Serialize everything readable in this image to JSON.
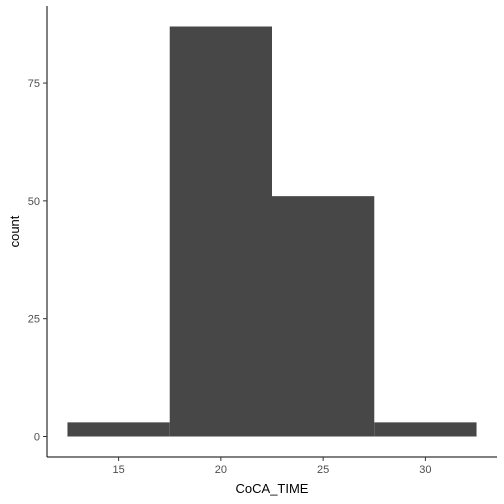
{
  "chart_data": {
    "type": "bar",
    "bins": [
      {
        "x0": 12.5,
        "x1": 17.5,
        "count": 3
      },
      {
        "x0": 17.5,
        "x1": 22.5,
        "count": 87
      },
      {
        "x0": 22.5,
        "x1": 27.5,
        "count": 51
      },
      {
        "x0": 27.5,
        "x1": 32.5,
        "count": 3
      }
    ],
    "xlabel": "CoCA_TIME",
    "ylabel": "count",
    "xlim": [
      11.5,
      33.5
    ],
    "ylim": [
      -4.35,
      91.35
    ],
    "xticks": [
      15,
      20,
      25,
      30
    ],
    "yticks": [
      0,
      25,
      50,
      75
    ],
    "bar_color": "#474747",
    "grid": false,
    "legend": "none"
  }
}
